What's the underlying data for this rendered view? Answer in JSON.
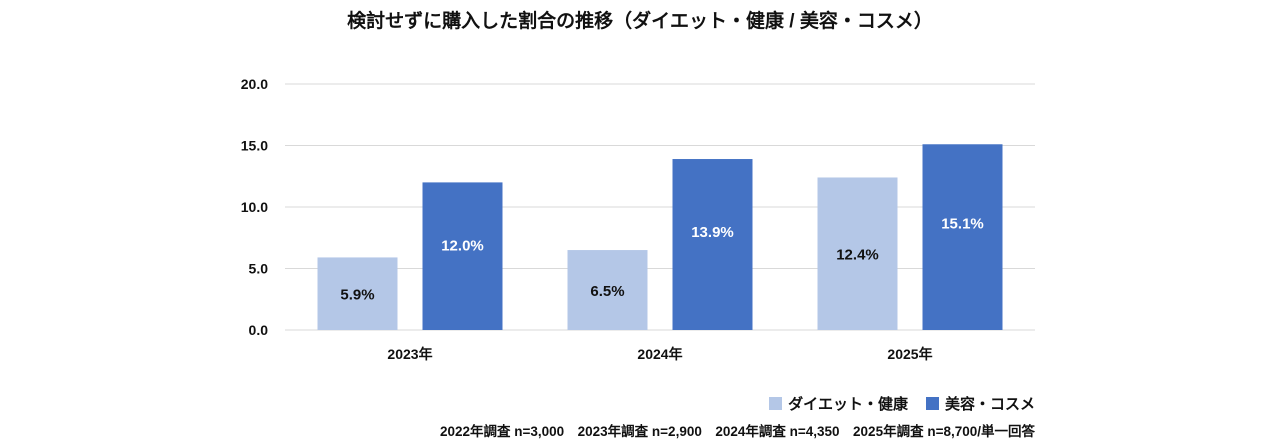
{
  "chart_data": {
    "type": "bar",
    "title": "検討せずに購入した割合の推移（ダイエット・健康 / 美容・コスメ）",
    "categories": [
      "2023年",
      "2024年",
      "2025年"
    ],
    "series": [
      {
        "name": "ダイエット・健康",
        "values": [
          5.9,
          6.5,
          12.4
        ],
        "labels": [
          "5.9%",
          "6.5%",
          "12.4%"
        ],
        "color": "#b4c7e7"
      },
      {
        "name": "美容・コスメ",
        "values": [
          12.0,
          13.9,
          15.1
        ],
        "labels": [
          "12.0%",
          "13.9%",
          "15.1%"
        ],
        "color": "#4472c4"
      }
    ],
    "yticks": [
      "0.0",
      "5.0",
      "10.0",
      "15.0",
      "20.0"
    ],
    "ylim": [
      0,
      20
    ],
    "grid": true,
    "legend": "bottom-right",
    "note": "2022年調査 n=3,000　2023年調査 n=2,900　2024年調査 n=4,350　2025年調査 n=8,700/単一回答"
  }
}
